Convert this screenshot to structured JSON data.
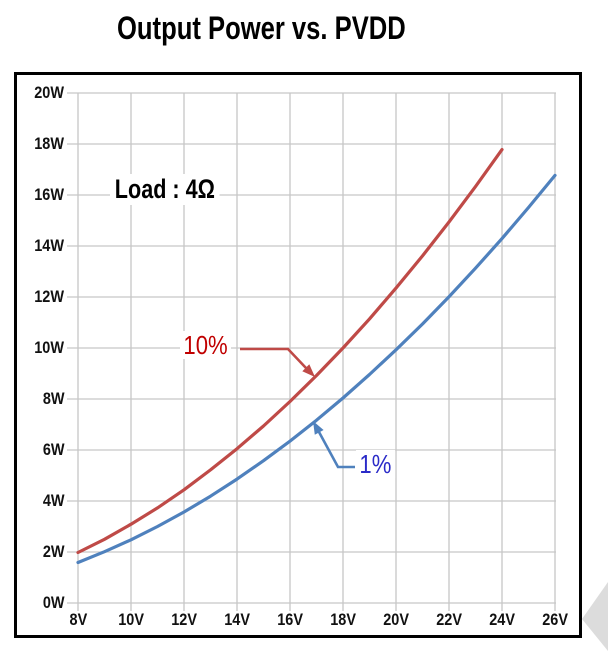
{
  "chart_data": {
    "type": "line",
    "title": "Output Power vs. PVDD",
    "annotation": "Load : 4Ω",
    "xlabel": "",
    "ylabel": "",
    "grid": true,
    "x_range": [
      8,
      26
    ],
    "y_range": [
      0,
      20
    ],
    "x_tick_step_volts": 2,
    "y_tick_step_watts": 2,
    "x_ticks": [
      "8V",
      "10V",
      "12V",
      "14V",
      "16V",
      "18V",
      "20V",
      "22V",
      "24V",
      "26V"
    ],
    "y_ticks": [
      "0W",
      "2W",
      "4W",
      "6W",
      "8W",
      "10W",
      "12W",
      "14W",
      "16W",
      "18W",
      "20W"
    ],
    "series": [
      {
        "name": "10%",
        "color": "#bf4a47",
        "label_color": "#c00000",
        "x": [
          8,
          9,
          10,
          11,
          12,
          13,
          14,
          15,
          16,
          17,
          18,
          19,
          20,
          21,
          22,
          23,
          24
        ],
        "values": [
          1.98,
          2.5,
          3.09,
          3.73,
          4.44,
          5.22,
          6.05,
          6.94,
          7.9,
          8.92,
          10.0,
          11.14,
          12.35,
          13.61,
          14.94,
          16.33,
          17.78
        ]
      },
      {
        "name": "1%",
        "color": "#4f81bd",
        "label_color": "#2a2ac8",
        "x": [
          8,
          9,
          10,
          11,
          12,
          13,
          14,
          15,
          16,
          17,
          18,
          19,
          20,
          21,
          22,
          23,
          24,
          25,
          26
        ],
        "values": [
          1.59,
          2.01,
          2.48,
          3.0,
          3.57,
          4.19,
          4.86,
          5.58,
          6.35,
          7.17,
          8.04,
          8.96,
          9.93,
          10.94,
          12.01,
          13.13,
          14.29,
          15.51,
          16.77
        ]
      }
    ],
    "style": {
      "grid_color": "#c7c7c7",
      "frame_color": "#000000",
      "corner_decoration_color": "#dcdcdc"
    }
  }
}
